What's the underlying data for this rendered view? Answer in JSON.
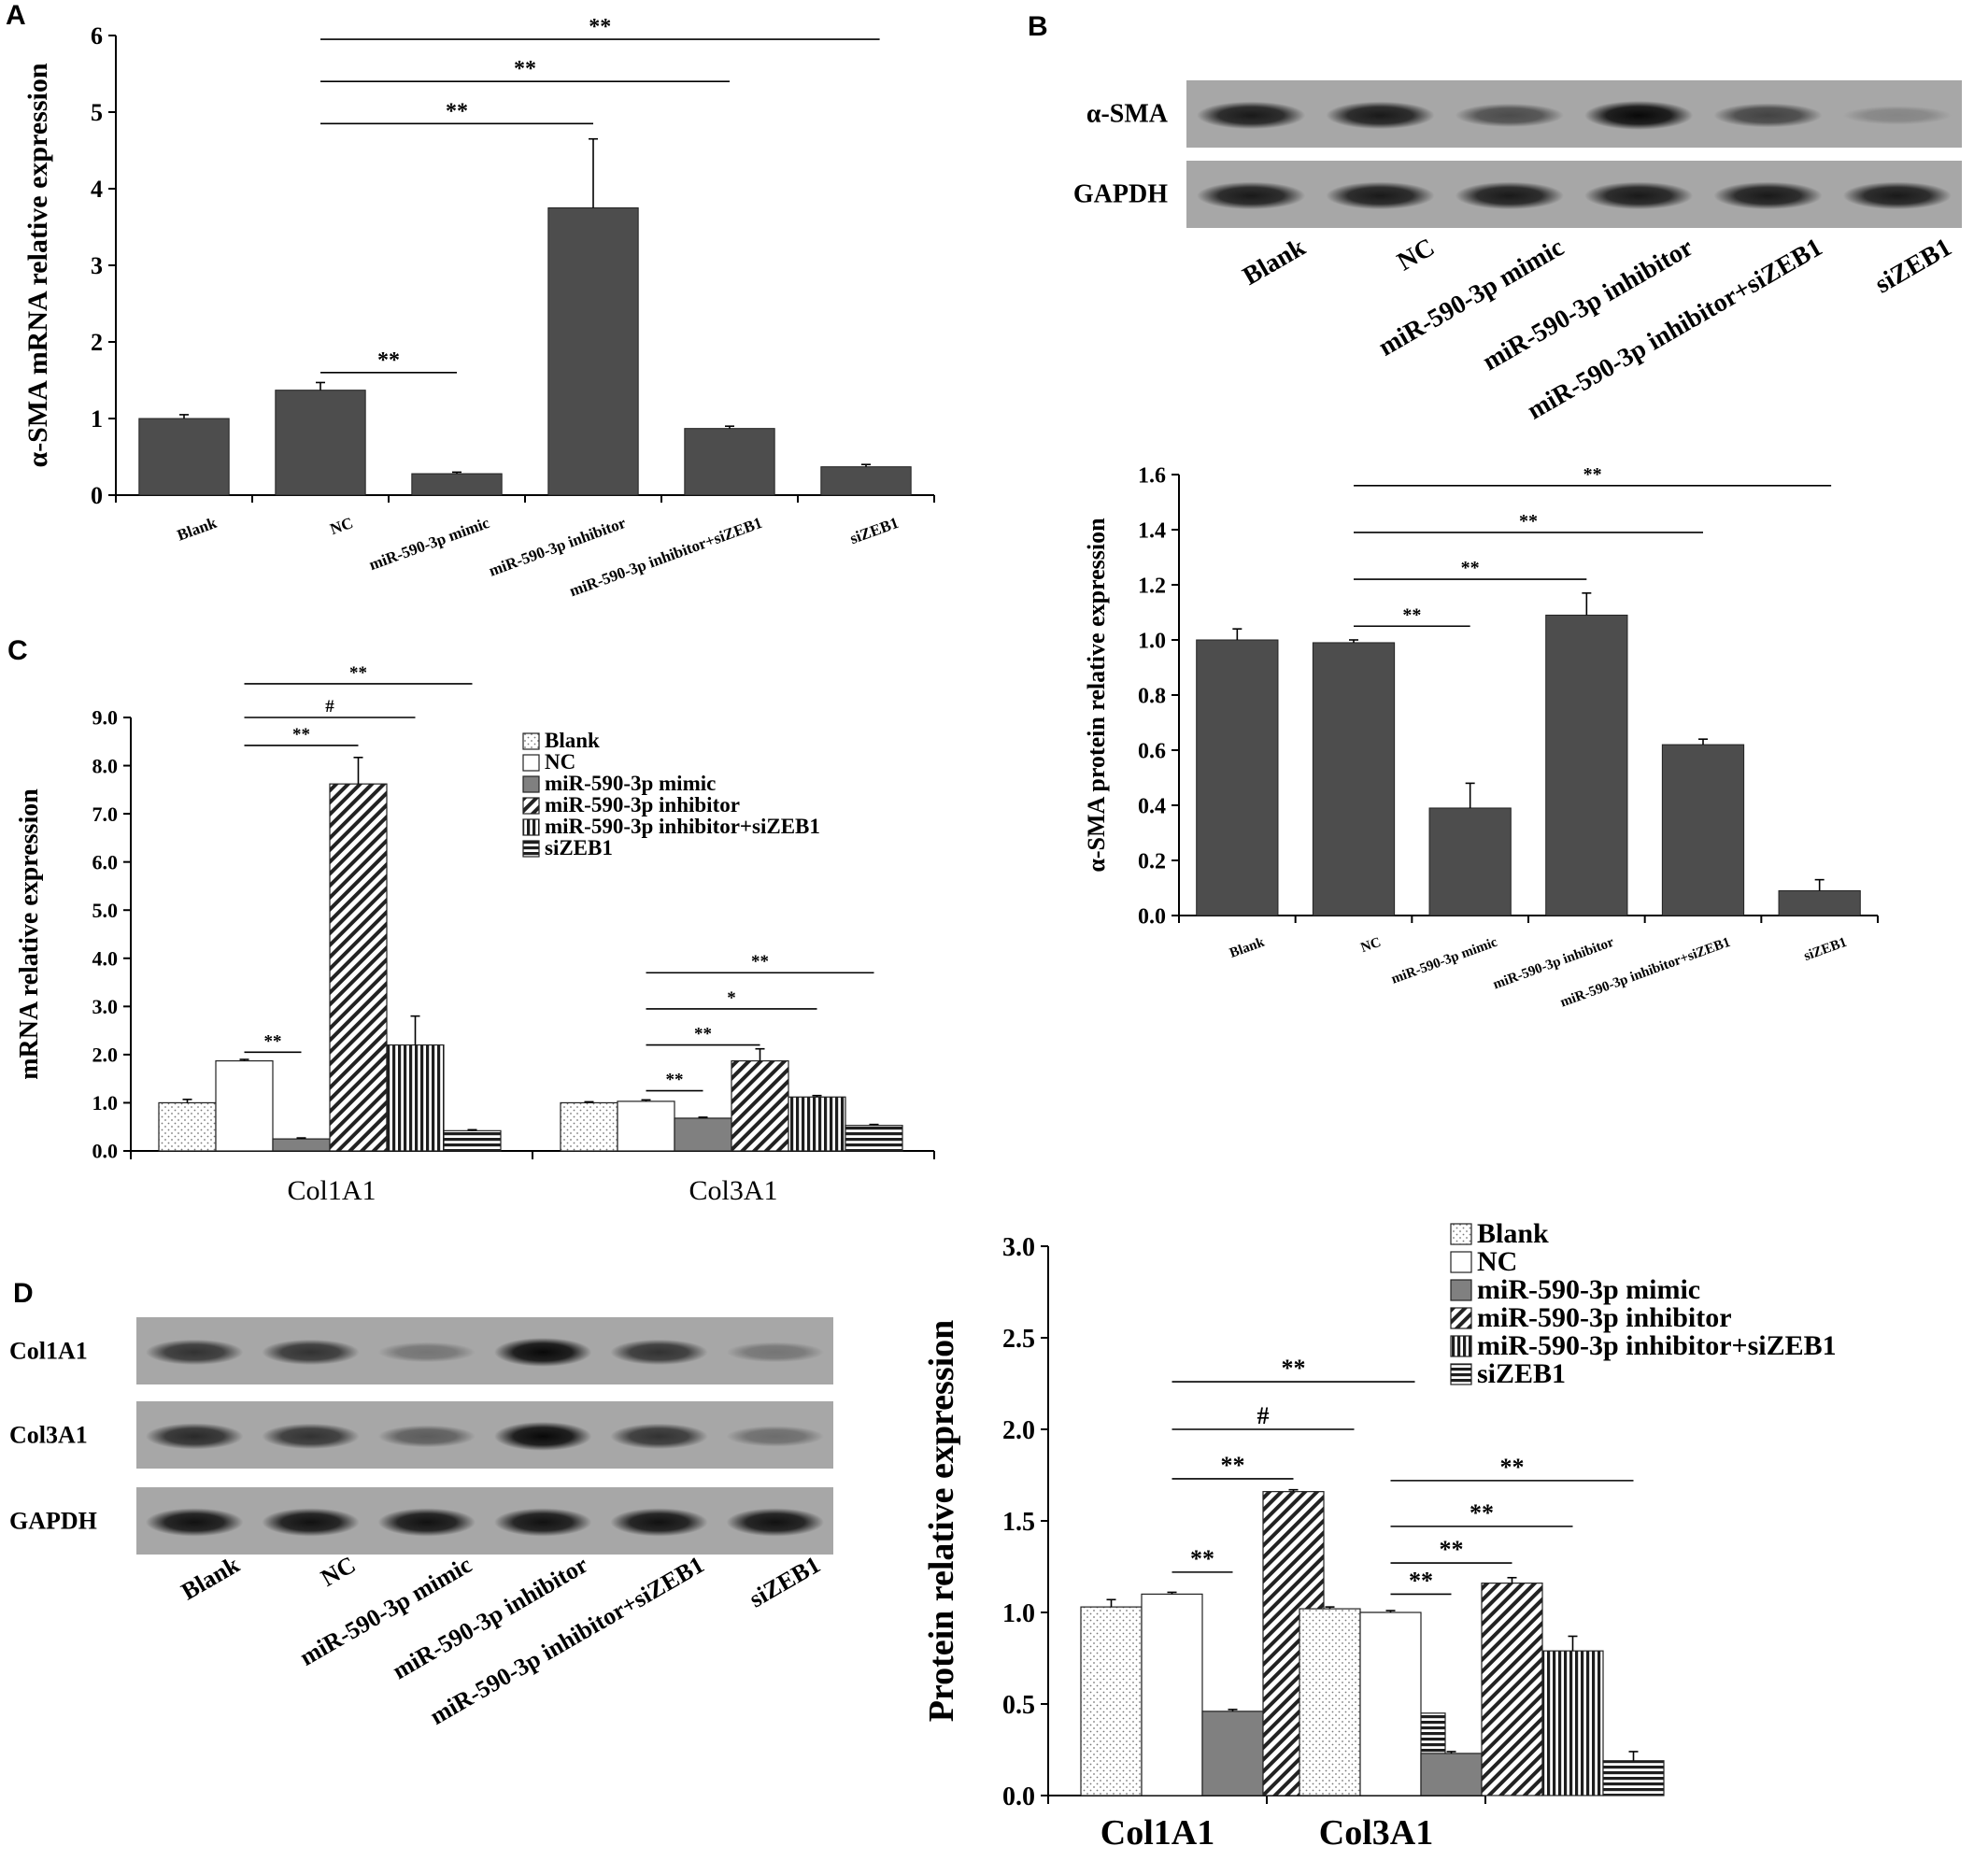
{
  "panels": {
    "a": "A",
    "b": "B",
    "c": "C",
    "d": "D"
  },
  "blots": {
    "b": {
      "rows": [
        "α-SMA",
        "GAPDH"
      ],
      "lanes": [
        "Blank",
        "NC",
        "miR-590-3p mimic",
        "miR-590-3p inhibitor",
        "miR-590-3p inhibitor+siZEB1",
        "siZEB1"
      ],
      "intensity": {
        "α-SMA": [
          0.85,
          0.85,
          0.55,
          0.95,
          0.6,
          0.2
        ],
        "GAPDH": [
          0.85,
          0.85,
          0.85,
          0.85,
          0.85,
          0.85
        ]
      }
    },
    "d": {
      "rows": [
        "Col1A1",
        "Col3A1",
        "GAPDH"
      ],
      "lanes": [
        "Blank",
        "NC",
        "miR-590-3p mimic",
        "miR-590-3p inhibitor",
        "miR-590-3p inhibitor+siZEB1",
        "siZEB1"
      ],
      "intensity": {
        "Col1A1": [
          0.7,
          0.7,
          0.3,
          0.95,
          0.7,
          0.3
        ],
        "Col3A1": [
          0.75,
          0.7,
          0.45,
          0.95,
          0.7,
          0.35
        ],
        "GAPDH": [
          0.9,
          0.9,
          0.9,
          0.9,
          0.9,
          0.9
        ]
      }
    }
  },
  "chart_data": [
    {
      "id": "A",
      "type": "bar",
      "ylabel": "α-SMA mRNA relative expression",
      "categories": [
        "Blank",
        "NC",
        "miR-590-3p mimic",
        "miR-590-3p inhibitor",
        "miR-590-3p inhibitor+siZEB1",
        "siZEB1"
      ],
      "values": [
        1.0,
        1.37,
        0.28,
        3.75,
        0.87,
        0.37
      ],
      "errors": [
        0.05,
        0.1,
        0.02,
        0.9,
        0.03,
        0.03
      ],
      "ylim": [
        0,
        6
      ],
      "yticks": [
        "0",
        "1",
        "2",
        "3",
        "4",
        "5",
        "6"
      ],
      "color": "#4d4d4d",
      "significance": [
        {
          "from": 1,
          "to": 2,
          "label": "**",
          "y": 1.6
        },
        {
          "from": 1,
          "to": 3,
          "label": "**",
          "y": 4.85
        },
        {
          "from": 1,
          "to": 4,
          "label": "**",
          "y": 5.4
        },
        {
          "from": 1,
          "to": 5,
          "label": "**",
          "y": 5.95
        }
      ]
    },
    {
      "id": "B",
      "type": "bar",
      "ylabel": "α-SMA protein relative expression",
      "categories": [
        "Blank",
        "NC",
        "miR-590-3p mimic",
        "miR-590-3p inhibitor",
        "miR-590-3p inhibitor+siZEB1",
        "siZEB1"
      ],
      "values": [
        1.0,
        0.99,
        0.39,
        1.09,
        0.62,
        0.09
      ],
      "errors": [
        0.04,
        0.01,
        0.09,
        0.08,
        0.02,
        0.04
      ],
      "ylim": [
        0,
        1.6
      ],
      "yticks": [
        "0.0",
        "0.2",
        "0.4",
        "0.6",
        "0.8",
        "1.0",
        "1.2",
        "1.4",
        "1.6"
      ],
      "color": "#4d4d4d",
      "significance": [
        {
          "from": 1,
          "to": 2,
          "label": "**",
          "y": 1.05
        },
        {
          "from": 1,
          "to": 3,
          "label": "**",
          "y": 1.22
        },
        {
          "from": 1,
          "to": 4,
          "label": "**",
          "y": 1.39
        },
        {
          "from": 1,
          "to": 5,
          "label": "**",
          "y": 1.56
        }
      ]
    },
    {
      "id": "C",
      "type": "bar",
      "ylabel": "mRNA relative expression",
      "categories": [
        "Col1A1",
        "Col3A1"
      ],
      "ylim": [
        0,
        9
      ],
      "yticks": [
        "0.0",
        "1.0",
        "2.0",
        "3.0",
        "4.0",
        "5.0",
        "6.0",
        "7.0",
        "8.0",
        "9.0"
      ],
      "series": [
        {
          "name": "Blank",
          "values": [
            1.0,
            1.0
          ],
          "errors": [
            0.07,
            0.02
          ],
          "pattern": "dots"
        },
        {
          "name": "NC",
          "values": [
            1.87,
            1.03
          ],
          "errors": [
            0.03,
            0.03
          ],
          "pattern": "white"
        },
        {
          "name": "miR-590-3p mimic",
          "values": [
            0.25,
            0.68
          ],
          "errors": [
            0.02,
            0.02
          ],
          "pattern": "gray"
        },
        {
          "name": "miR-590-3p inhibitor",
          "values": [
            7.62,
            1.87
          ],
          "errors": [
            0.55,
            0.25
          ],
          "pattern": "diag"
        },
        {
          "name": "miR-590-3p inhibitor+siZEB1",
          "values": [
            2.2,
            1.12
          ],
          "errors": [
            0.6,
            0.03
          ],
          "pattern": "vert"
        },
        {
          "name": "siZEB1",
          "values": [
            0.42,
            0.53
          ],
          "errors": [
            0.02,
            0.02
          ],
          "pattern": "horiz"
        }
      ],
      "significance": [
        {
          "group": 0,
          "from": 1,
          "to": 2,
          "label": "**",
          "y": 2.05
        },
        {
          "group": 0,
          "from": 1,
          "to": 3,
          "label": "**",
          "y": 8.42
        },
        {
          "group": 0,
          "from": 1,
          "to": 4,
          "label": "#",
          "y": 9.0
        },
        {
          "group": 0,
          "from": 1,
          "to": 5,
          "label": "**",
          "y": 9.7
        },
        {
          "group": 1,
          "from": 1,
          "to": 2,
          "label": "**",
          "y": 1.25
        },
        {
          "group": 1,
          "from": 1,
          "to": 3,
          "label": "**",
          "y": 2.2
        },
        {
          "group": 1,
          "from": 1,
          "to": 4,
          "label": "*",
          "y": 2.95
        },
        {
          "group": 1,
          "from": 1,
          "to": 5,
          "label": "**",
          "y": 3.7
        }
      ]
    },
    {
      "id": "D",
      "type": "bar",
      "ylabel": "Protein relative expression",
      "categories": [
        "Col1A1",
        "Col3A1"
      ],
      "ylim": [
        0,
        3.0
      ],
      "yticks": [
        "0.0",
        "0.5",
        "1.0",
        "1.5",
        "2.0",
        "2.5",
        "3.0"
      ],
      "series": [
        {
          "name": "Blank",
          "values": [
            1.03,
            1.02
          ],
          "errors": [
            0.04,
            0.01
          ],
          "pattern": "dots"
        },
        {
          "name": "NC",
          "values": [
            1.1,
            1.0
          ],
          "errors": [
            0.01,
            0.01
          ],
          "pattern": "white"
        },
        {
          "name": "miR-590-3p mimic",
          "values": [
            0.46,
            0.23
          ],
          "errors": [
            0.01,
            0.01
          ],
          "pattern": "gray"
        },
        {
          "name": "miR-590-3p inhibitor",
          "values": [
            1.66,
            1.16
          ],
          "errors": [
            0.01,
            0.03
          ],
          "pattern": "diag"
        },
        {
          "name": "miR-590-3p inhibitor+siZEB1",
          "values": [
            1.0,
            0.79
          ],
          "errors": [
            0.01,
            0.08
          ],
          "pattern": "vert"
        },
        {
          "name": "siZEB1",
          "values": [
            0.45,
            0.19
          ],
          "errors": [
            0.05,
            0.05
          ],
          "pattern": "horiz"
        }
      ],
      "significance": [
        {
          "group": 0,
          "from": 1,
          "to": 2,
          "label": "**",
          "y": 1.22
        },
        {
          "group": 0,
          "from": 1,
          "to": 3,
          "label": "**",
          "y": 1.73
        },
        {
          "group": 0,
          "from": 1,
          "to": 4,
          "label": "#",
          "y": 2.0
        },
        {
          "group": 0,
          "from": 1,
          "to": 5,
          "label": "**",
          "y": 2.26
        },
        {
          "group": 1,
          "from": 1,
          "to": 2,
          "label": "**",
          "y": 1.1
        },
        {
          "group": 1,
          "from": 1,
          "to": 3,
          "label": "**",
          "y": 1.27
        },
        {
          "group": 1,
          "from": 1,
          "to": 4,
          "label": "**",
          "y": 1.47
        },
        {
          "group": 1,
          "from": 1,
          "to": 5,
          "label": "**",
          "y": 1.72
        }
      ]
    }
  ]
}
